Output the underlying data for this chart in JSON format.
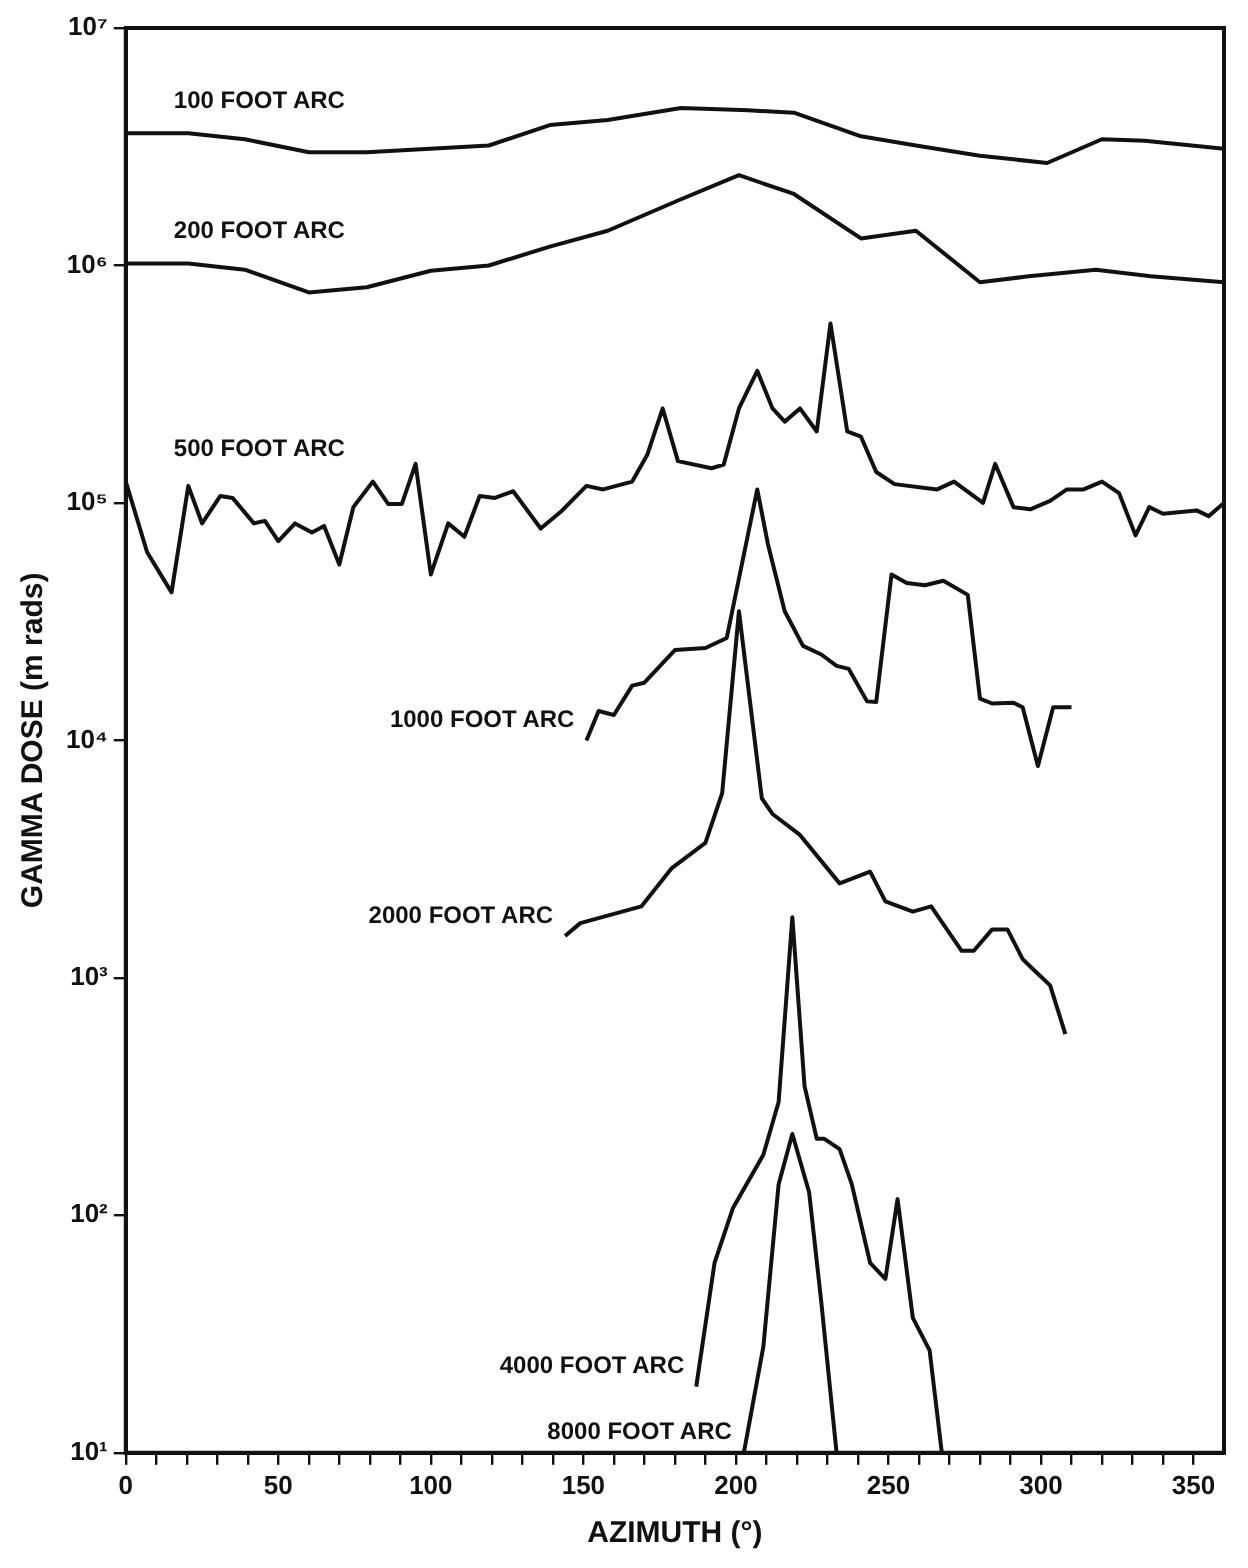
{
  "chart_data": {
    "type": "line",
    "xlabel": "AZIMUTH (°)",
    "ylabel": "GAMMA DOSE (m rads)",
    "log": "y",
    "legend": false,
    "marker": "none",
    "line_style": "solid",
    "xlim": [
      0,
      360
    ],
    "ylim": [
      10,
      10000000
    ],
    "xticks": [
      0,
      {
        "value": 10,
        "label": null
      },
      {
        "value": 20,
        "label": null
      },
      {
        "value": 30,
        "label": null
      },
      {
        "value": 40,
        "label": null
      },
      50,
      {
        "value": 60,
        "label": null
      },
      {
        "value": 70,
        "label": null
      },
      {
        "value": 80,
        "label": null
      },
      {
        "value": 90,
        "label": null
      },
      100,
      {
        "value": 110,
        "label": null
      },
      {
        "value": 120,
        "label": null
      },
      {
        "value": 130,
        "label": null
      },
      {
        "value": 140,
        "label": null
      },
      150,
      {
        "value": 160,
        "label": null
      },
      {
        "value": 170,
        "label": null
      },
      {
        "value": 180,
        "label": null
      },
      {
        "value": 190,
        "label": null
      },
      200,
      {
        "value": 210,
        "label": null
      },
      {
        "value": 220,
        "label": null
      },
      {
        "value": 230,
        "label": null
      },
      {
        "value": 240,
        "label": null
      },
      250,
      {
        "value": 260,
        "label": null
      },
      {
        "value": 270,
        "label": null
      },
      {
        "value": 280,
        "label": null
      },
      {
        "value": 290,
        "label": null
      },
      300,
      {
        "value": 310,
        "label": null
      },
      {
        "value": 320,
        "label": null
      },
      {
        "value": 330,
        "label": null
      },
      {
        "value": 340,
        "label": null
      },
      350
    ],
    "yticks": [
      {
        "value": 10,
        "label": "10¹"
      },
      {
        "value": 100,
        "label": "10²"
      },
      {
        "value": 1000,
        "label": "10³"
      },
      {
        "value": 10000,
        "label": "10⁴"
      },
      {
        "value": 100000,
        "label": "10⁵"
      },
      {
        "value": 1000000,
        "label": "10⁶"
      },
      {
        "value": 10000000,
        "label": "10⁷"
      }
    ],
    "series": [
      {
        "name": "100 FOOT ARC",
        "color": "#111111",
        "x": [
          0,
          20.5,
          39,
          60,
          79,
          119,
          139,
          158,
          182,
          204,
          219,
          241,
          259,
          280,
          302,
          320,
          334,
          360
        ],
        "values": [
          3600000,
          3600000,
          3400000,
          3000000,
          3000000,
          3200000,
          3900000,
          4100000,
          4600000,
          4500000,
          4400000,
          3500000,
          3200000,
          2900000,
          2700000,
          3400000,
          3350000,
          3100000
        ]
      },
      {
        "name": "200 FOOT ARC",
        "color": "#111111",
        "x": [
          0,
          20.5,
          39,
          60,
          79,
          100,
          119,
          139,
          158,
          182,
          201,
          219,
          241,
          259,
          280,
          296,
          318,
          336,
          360
        ],
        "values": [
          1020000,
          1020000,
          960000,
          770000,
          810000,
          950000,
          1000000,
          1200000,
          1400000,
          1900000,
          2400000,
          2000000,
          1300000,
          1400000,
          850000,
          900000,
          960000,
          900000,
          850000
        ]
      },
      {
        "name": "500 FOOT ARC",
        "color": "#111111",
        "x": [
          0,
          7,
          15,
          20.5,
          25,
          31,
          35,
          42,
          45.6,
          50,
          55.5,
          61,
          65,
          70,
          74.6,
          81,
          86,
          90.5,
          95,
          100,
          105.7,
          111,
          116,
          121,
          127,
          136,
          142.7,
          151,
          156.5,
          166,
          171,
          176,
          181,
          192,
          196,
          201,
          207,
          212,
          216,
          221,
          226.5,
          231,
          236.5,
          241,
          246,
          252,
          266,
          271.5,
          281,
          285,
          291,
          296.5,
          303,
          308.5,
          314,
          320,
          325.6,
          331,
          335.5,
          340,
          351,
          355,
          360
        ],
        "values": [
          123000,
          62000,
          42000,
          118000,
          82000,
          107000,
          105000,
          82000,
          84000,
          69000,
          82000,
          75000,
          80000,
          55000,
          96000,
          123000,
          99000,
          99000,
          146000,
          50000,
          82000,
          72000,
          107000,
          105000,
          112000,
          78000,
          92000,
          118000,
          114000,
          123000,
          160000,
          250000,
          150000,
          140000,
          145000,
          250000,
          360000,
          250000,
          220000,
          250000,
          200000,
          570000,
          200000,
          190000,
          135000,
          120000,
          114000,
          123000,
          100000,
          146000,
          96000,
          94000,
          102000,
          114000,
          114000,
          123000,
          110000,
          73000,
          96000,
          90000,
          93000,
          88000,
          100000
        ]
      },
      {
        "name": "1000 FOOT ARC",
        "color": "#111111",
        "x": [
          151,
          155,
          160,
          166,
          170,
          180,
          190,
          197,
          207,
          210.5,
          216,
          222,
          228,
          233,
          237,
          243,
          246,
          251,
          256,
          262,
          268,
          276,
          280,
          284,
          291,
          294,
          299,
          304,
          310
        ],
        "values": [
          10000,
          13300,
          12800,
          17000,
          17500,
          24000,
          24500,
          27000,
          114000,
          67000,
          35000,
          25000,
          23000,
          20600,
          20000,
          14600,
          14500,
          50000,
          46000,
          45000,
          47000,
          41000,
          15000,
          14300,
          14400,
          13800,
          7800,
          13800,
          13800
        ]
      },
      {
        "name": "2000 FOOT ARC",
        "color": "#111111",
        "x": [
          144,
          149,
          169,
          179,
          190,
          195.5,
          201,
          208.5,
          212,
          221,
          234,
          244,
          249,
          258,
          264,
          274,
          278,
          284,
          289,
          294,
          297,
          303,
          308
        ],
        "values": [
          1500,
          1700,
          2000,
          2900,
          3700,
          6000,
          35000,
          5700,
          4900,
          4000,
          2500,
          2800,
          2100,
          1900,
          2000,
          1300,
          1300,
          1600,
          1600,
          1200,
          1100,
          930,
          580
        ]
      },
      {
        "name": "4000 FOOT ARC",
        "color": "#111111",
        "x": [
          187,
          193,
          199,
          209,
          214,
          218.5,
          222.5,
          226.5,
          229,
          234,
          238,
          244,
          249,
          253,
          258,
          263.5,
          267.5
        ],
        "values": [
          19,
          63,
          107,
          180,
          300,
          1800,
          350,
          210,
          210,
          190,
          135,
          63,
          54,
          117,
          37,
          27,
          10
        ]
      },
      {
        "name": "8000 FOOT ARC",
        "color": "#111111",
        "x": [
          202.6,
          209,
          214,
          218.5,
          224,
          228,
          233
        ],
        "values": [
          10,
          28,
          135,
          220,
          125,
          43,
          10
        ]
      }
    ]
  }
}
